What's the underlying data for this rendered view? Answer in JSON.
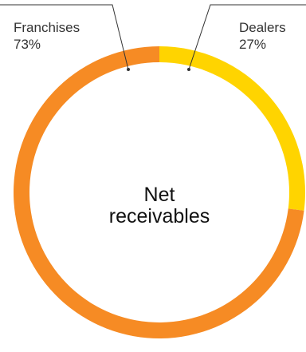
{
  "chart_data": {
    "type": "pie",
    "variant": "donut",
    "center_label_lines": [
      "Net",
      "receivables"
    ],
    "slices": [
      {
        "name": "Dealers",
        "value": 27,
        "value_label": "27%",
        "color": "#FFD400"
      },
      {
        "name": "Franchises",
        "value": 73,
        "value_label": "73%",
        "color": "#F68B24"
      }
    ],
    "start_angle_deg": 0,
    "direction": "clockwise",
    "callout_line_color": "#333333"
  }
}
